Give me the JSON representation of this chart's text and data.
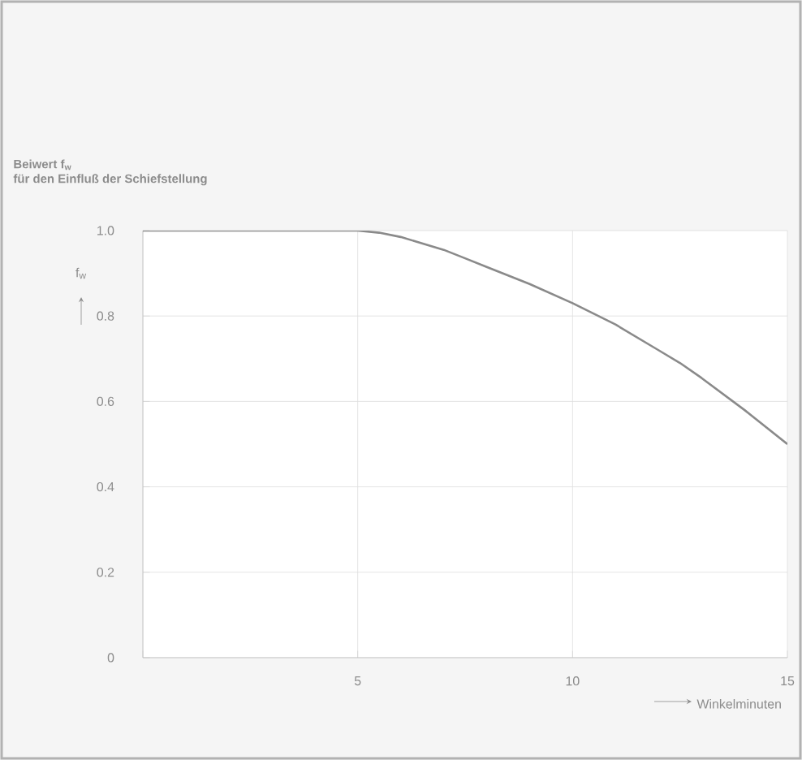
{
  "chart_data": {
    "type": "line",
    "title": "Beiwert f$_{w}$",
    "subtitle": "für den Einfluß der Schiefstellung",
    "xlabel": "Winkelminuten",
    "ylabel": "f$_{w}$",
    "x": [
      0,
      5,
      5.5,
      6,
      7,
      7.5,
      8,
      9,
      10,
      11,
      12,
      12.5,
      13,
      14,
      15
    ],
    "series": [
      {
        "color": "#8a8a8a",
        "values": [
          1.0,
          1.0,
          0.995,
          0.985,
          0.955,
          0.935,
          0.915,
          0.875,
          0.83,
          0.78,
          0.72,
          0.69,
          0.655,
          0.58,
          0.5
        ]
      }
    ],
    "xlim": [
      0,
      15
    ],
    "ylim": [
      0,
      1.0
    ],
    "xticks": [
      {
        "value": 0,
        "label": null
      },
      5,
      10,
      15
    ],
    "yticks": [
      0,
      0.2,
      0.4,
      0.6,
      0.8,
      {
        "value": 1.0,
        "label": "1.0"
      }
    ],
    "grid": true,
    "marker": "none",
    "line_style": "solid"
  }
}
